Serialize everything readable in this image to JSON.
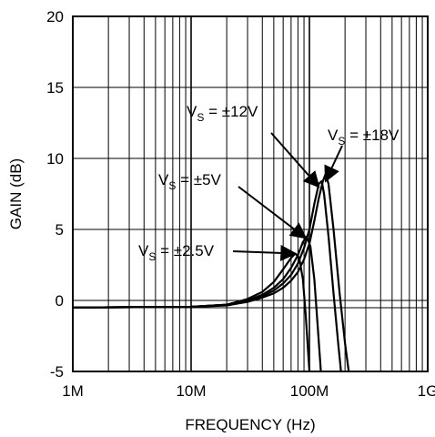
{
  "chart_data": {
    "type": "line",
    "title": "",
    "xlabel": "FREQUENCY (Hz)",
    "ylabel": "GAIN (dB)",
    "x_scale": "log",
    "xlim": [
      1000000,
      1000000000
    ],
    "ylim": [
      -5,
      20
    ],
    "grid": true,
    "x_ticks": [
      {
        "value": 1000000,
        "label": "1M"
      },
      {
        "value": 10000000,
        "label": "10M"
      },
      {
        "value": 100000000,
        "label": "100M"
      },
      {
        "value": 1000000000,
        "label": "1G"
      }
    ],
    "y_ticks": [
      {
        "value": -5,
        "label": "-5"
      },
      {
        "value": 0,
        "label": "0"
      },
      {
        "value": 5,
        "label": "5"
      },
      {
        "value": 10,
        "label": "10"
      },
      {
        "value": 15,
        "label": "15"
      },
      {
        "value": 20,
        "label": "20"
      }
    ],
    "series": [
      {
        "label_main": "V",
        "label_sub": "S",
        "label_rest": " = ±2.5V",
        "points": [
          [
            1000000,
            -0.5
          ],
          [
            10000000,
            -0.45
          ],
          [
            20000000,
            -0.3
          ],
          [
            30000000,
            0.1
          ],
          [
            40000000,
            0.6
          ],
          [
            50000000,
            1.3
          ],
          [
            60000000,
            2.2
          ],
          [
            70000000,
            3.0
          ],
          [
            76000000,
            3.3
          ],
          [
            82000000,
            3.0
          ],
          [
            88000000,
            1.5
          ],
          [
            93000000,
            -1.0
          ],
          [
            100000000,
            -5
          ]
        ]
      },
      {
        "label_main": "V",
        "label_sub": "S",
        "label_rest": " = ±5V",
        "points": [
          [
            1000000,
            -0.5
          ],
          [
            10000000,
            -0.45
          ],
          [
            20000000,
            -0.3
          ],
          [
            30000000,
            0.0
          ],
          [
            40000000,
            0.4
          ],
          [
            50000000,
            0.9
          ],
          [
            60000000,
            1.5
          ],
          [
            70000000,
            2.3
          ],
          [
            80000000,
            3.2
          ],
          [
            88000000,
            4.1
          ],
          [
            95000000,
            4.5
          ],
          [
            102000000,
            3.8
          ],
          [
            110000000,
            1.5
          ],
          [
            118000000,
            -2.0
          ],
          [
            125000000,
            -5
          ]
        ]
      },
      {
        "label_main": "V",
        "label_sub": "S",
        "label_rest": " = ±12V",
        "points": [
          [
            1000000,
            -0.5
          ],
          [
            10000000,
            -0.45
          ],
          [
            20000000,
            -0.3
          ],
          [
            30000000,
            -0.05
          ],
          [
            40000000,
            0.3
          ],
          [
            50000000,
            0.7
          ],
          [
            60000000,
            1.2
          ],
          [
            70000000,
            1.8
          ],
          [
            80000000,
            2.6
          ],
          [
            90000000,
            3.7
          ],
          [
            100000000,
            5.0
          ],
          [
            110000000,
            6.8
          ],
          [
            120000000,
            8.2
          ],
          [
            127000000,
            8.4
          ],
          [
            133000000,
            7.5
          ],
          [
            145000000,
            4.5
          ],
          [
            160000000,
            0.5
          ],
          [
            175000000,
            -3.0
          ],
          [
            185000000,
            -5
          ]
        ]
      },
      {
        "label_main": "V",
        "label_sub": "S",
        "label_rest": " = ±18V",
        "points": [
          [
            1000000,
            -0.5
          ],
          [
            10000000,
            -0.45
          ],
          [
            20000000,
            -0.35
          ],
          [
            30000000,
            -0.1
          ],
          [
            40000000,
            0.2
          ],
          [
            50000000,
            0.5
          ],
          [
            60000000,
            0.9
          ],
          [
            70000000,
            1.4
          ],
          [
            80000000,
            2.0
          ],
          [
            90000000,
            2.9
          ],
          [
            100000000,
            4.0
          ],
          [
            110000000,
            5.6
          ],
          [
            120000000,
            7.2
          ],
          [
            130000000,
            8.4
          ],
          [
            137000000,
            8.9
          ],
          [
            145000000,
            8.2
          ],
          [
            160000000,
            5.0
          ],
          [
            180000000,
            0.5
          ],
          [
            200000000,
            -3.0
          ],
          [
            215000000,
            -5
          ]
        ]
      }
    ],
    "annotations": [
      {
        "series": 0,
        "label_x": 150000000000000,
        "label_y": 0
      },
      {
        "series": 1,
        "label_x": 0,
        "label_y": 0
      },
      {
        "series": 2,
        "label_x": 0,
        "label_y": 0
      },
      {
        "series": 3,
        "label_x": 0,
        "label_y": 0
      }
    ]
  }
}
